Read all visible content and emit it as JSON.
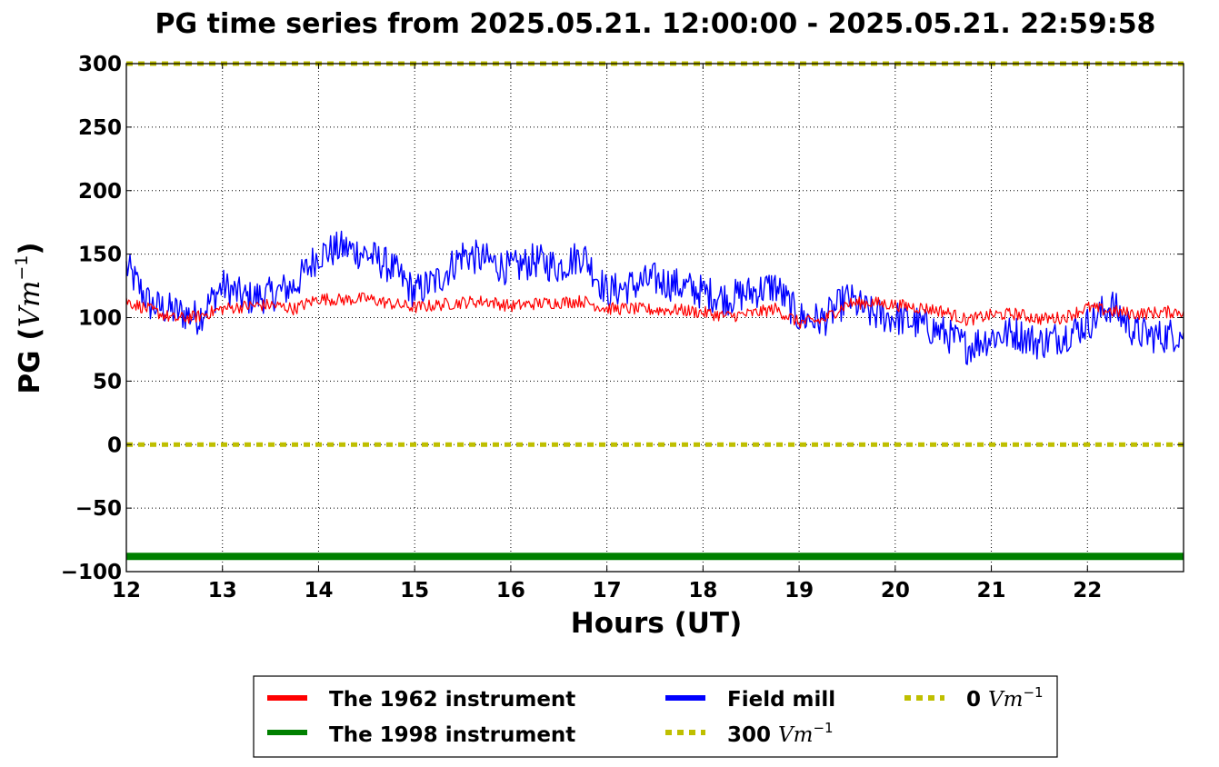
{
  "chart_data": {
    "type": "line",
    "title": "PG time series from 2025.05.21. 12:00:00 - 2025.05.21. 22:59:58",
    "xlabel": "Hours (UT)",
    "ylabel_prefix": "PG (",
    "ylabel_unit": "Vm",
    "ylabel_exp": "−1",
    "ylabel_suffix": ")",
    "xlim": [
      12,
      22.9999
    ],
    "ylim": [
      -100,
      300
    ],
    "xticks": [
      12,
      13,
      14,
      15,
      16,
      17,
      18,
      19,
      20,
      21,
      22
    ],
    "xtick_labels": [
      "12",
      "13",
      "14",
      "15",
      "16",
      "17",
      "18",
      "19",
      "20",
      "21",
      "22"
    ],
    "yticks": [
      -100,
      -50,
      0,
      50,
      100,
      150,
      200,
      250,
      300
    ],
    "ytick_labels": [
      "−100",
      "−50",
      "0",
      "50",
      "100",
      "150",
      "200",
      "250",
      "300"
    ],
    "grid": true,
    "legend_position": "below",
    "series": [
      {
        "name": "The 1962 instrument",
        "color": "#ff0000",
        "style": "solid",
        "x": [
          12.0,
          12.25,
          12.5,
          12.75,
          13.0,
          13.25,
          13.5,
          13.75,
          14.0,
          14.25,
          14.5,
          14.75,
          15.0,
          15.25,
          15.5,
          15.75,
          16.0,
          16.25,
          16.5,
          16.75,
          17.0,
          17.25,
          17.5,
          17.75,
          18.0,
          18.25,
          18.5,
          18.75,
          19.0,
          19.25,
          19.5,
          19.75,
          20.0,
          20.25,
          20.5,
          20.75,
          21.0,
          21.25,
          21.5,
          21.75,
          22.0,
          22.25,
          22.5,
          22.75,
          23.0
        ],
        "values": [
          113,
          106,
          99,
          101,
          107,
          109,
          110,
          107,
          115,
          114,
          115,
          111,
          108,
          110,
          112,
          113,
          109,
          111,
          112,
          113,
          107,
          107,
          106,
          106,
          104,
          101,
          103,
          107,
          96,
          98,
          111,
          112,
          110,
          108,
          105,
          98,
          102,
          103,
          99,
          100,
          108,
          105,
          103,
          104,
          105
        ]
      },
      {
        "name": "The 1998 instrument",
        "color": "#008000",
        "style": "solid-thick",
        "x": [
          12.0,
          23.0
        ],
        "values": [
          -88,
          -88
        ]
      },
      {
        "name": "Field mill",
        "color": "#0000ff",
        "style": "solid",
        "x": [
          12.0,
          12.25,
          12.5,
          12.75,
          13.0,
          13.25,
          13.5,
          13.75,
          14.0,
          14.25,
          14.5,
          14.75,
          15.0,
          15.25,
          15.5,
          15.75,
          16.0,
          16.25,
          16.5,
          16.75,
          17.0,
          17.25,
          17.5,
          17.75,
          18.0,
          18.25,
          18.5,
          18.75,
          19.0,
          19.25,
          19.5,
          19.75,
          20.0,
          20.25,
          20.5,
          20.75,
          21.0,
          21.25,
          21.5,
          21.75,
          22.0,
          22.25,
          22.5,
          22.75,
          23.0
        ],
        "values": [
          140,
          110,
          105,
          100,
          125,
          115,
          118,
          125,
          150,
          155,
          150,
          140,
          120,
          130,
          150,
          145,
          138,
          145,
          140,
          150,
          120,
          125,
          130,
          125,
          120,
          115,
          120,
          125,
          100,
          98,
          115,
          103,
          100,
          95,
          88,
          77,
          85,
          88,
          80,
          86,
          95,
          110,
          88,
          85,
          88
        ]
      },
      {
        "name": "300 Vm−1",
        "label_number": "300",
        "label_unit": "Vm",
        "label_exp": "−1",
        "color": "#bfbf00",
        "style": "dotted",
        "x": [
          12.0,
          23.0
        ],
        "values": [
          300,
          300
        ]
      },
      {
        "name": "0 Vm−1",
        "label_number": "0",
        "label_unit": "Vm",
        "label_exp": "−1",
        "color": "#bfbf00",
        "style": "dotted",
        "x": [
          12.0,
          23.0
        ],
        "values": [
          0,
          0
        ]
      }
    ]
  }
}
